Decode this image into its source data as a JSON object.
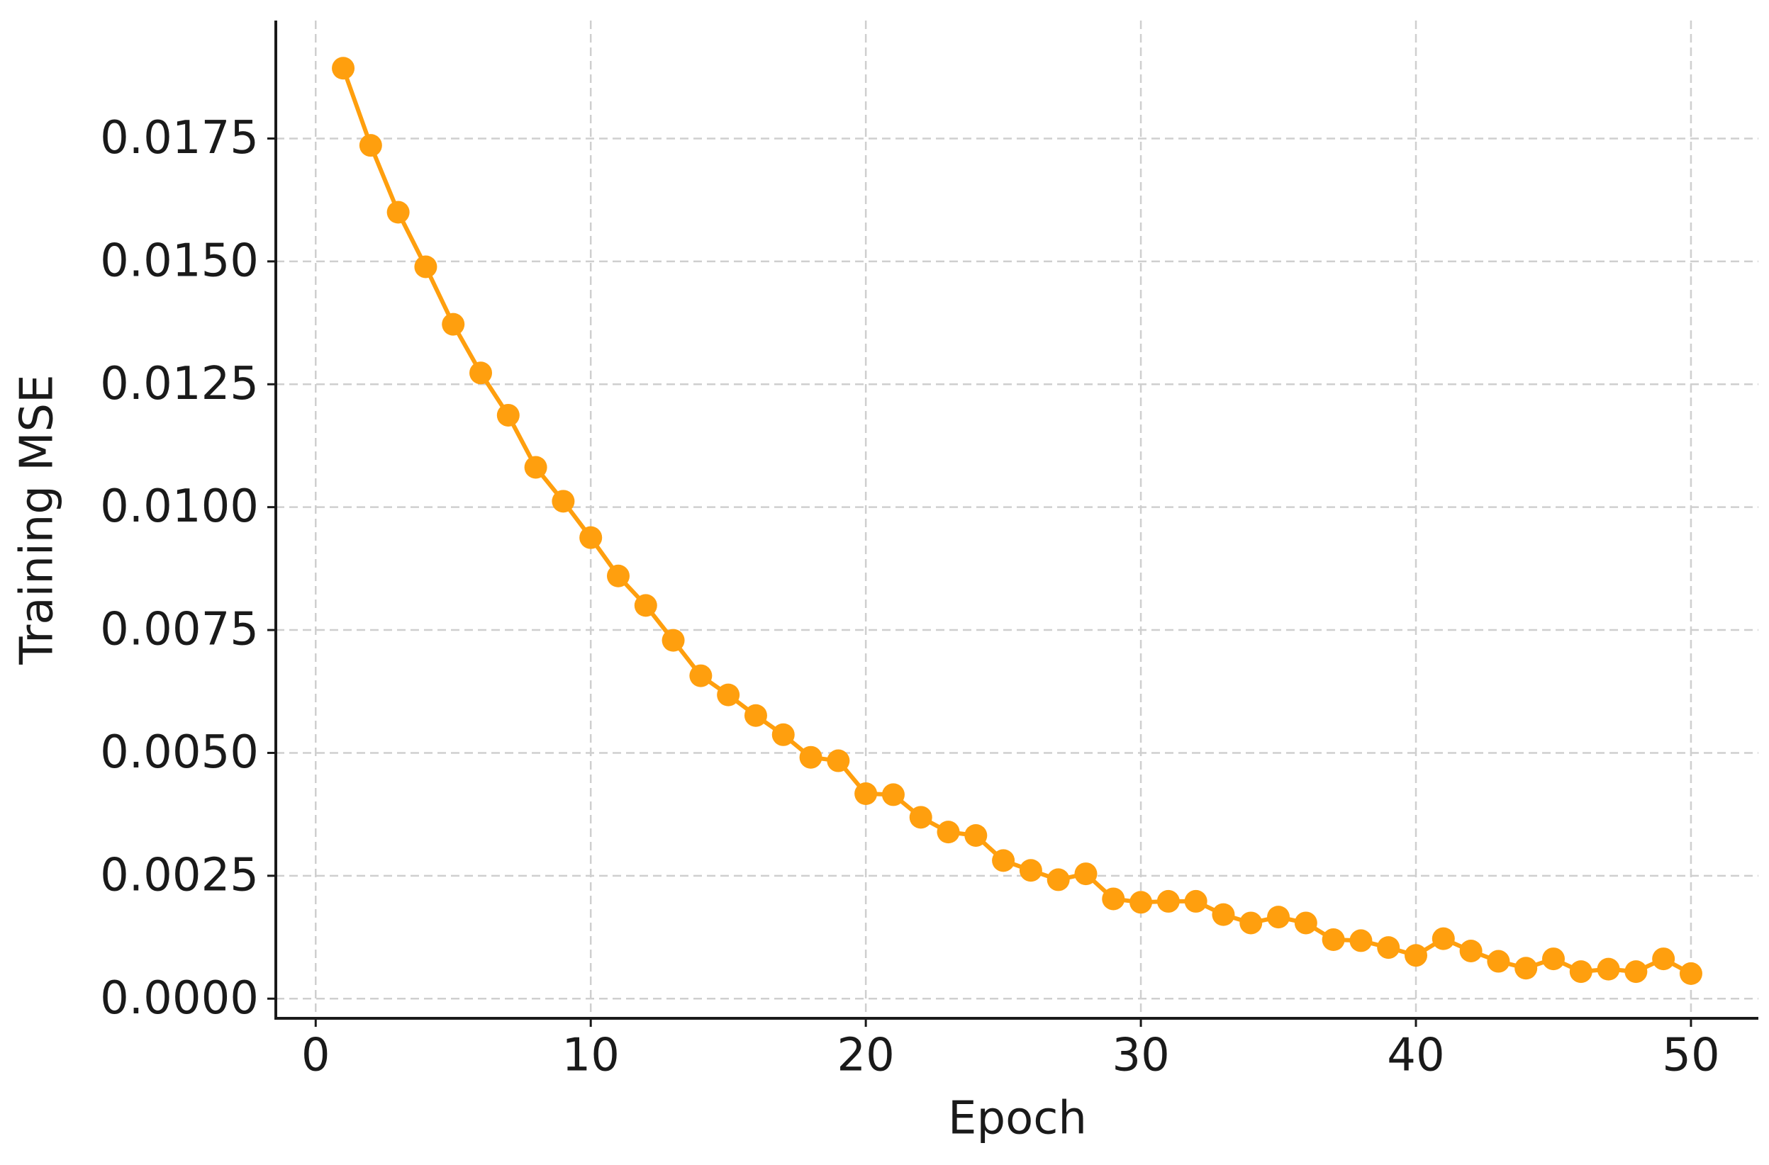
{
  "chart_data": {
    "type": "line",
    "xlabel": "Epoch",
    "ylabel": "Training MSE",
    "x": [
      1,
      2,
      3,
      4,
      5,
      6,
      7,
      8,
      9,
      10,
      11,
      12,
      13,
      14,
      15,
      16,
      17,
      18,
      19,
      20,
      21,
      22,
      23,
      24,
      25,
      26,
      27,
      28,
      29,
      30,
      31,
      32,
      33,
      34,
      35,
      36,
      37,
      38,
      39,
      40,
      41,
      42,
      43,
      44,
      45,
      46,
      47,
      48,
      49,
      50
    ],
    "values": [
      0.01893,
      0.01736,
      0.016,
      0.01489,
      0.01372,
      0.01273,
      0.01187,
      0.01081,
      0.01012,
      0.00938,
      0.0086,
      0.008,
      0.00729,
      0.00657,
      0.00618,
      0.00576,
      0.00537,
      0.00491,
      0.00484,
      0.00417,
      0.00415,
      0.00369,
      0.00339,
      0.00332,
      0.00281,
      0.00261,
      0.00242,
      0.00254,
      0.00203,
      0.00196,
      0.00198,
      0.00198,
      0.00171,
      0.00154,
      0.00166,
      0.00154,
      0.0012,
      0.00118,
      0.00104,
      0.00088,
      0.00122,
      0.00097,
      0.00076,
      0.00062,
      0.00081,
      0.00055,
      0.0006,
      0.00055,
      0.00081,
      0.00051
    ],
    "color": "#ff9f0e",
    "xlim": [
      -1.45,
      52.45
    ],
    "xticks": [
      0,
      10,
      20,
      30,
      40,
      50
    ],
    "ylim": [
      -0.0004,
      0.0199
    ],
    "yticks": [
      {
        "value": 0,
        "label": "0.0000"
      },
      {
        "value": 0.0025,
        "label": "0.0025"
      },
      {
        "value": 0.005,
        "label": "0.0050"
      },
      {
        "value": 0.0075,
        "label": "0.0075"
      },
      {
        "value": 0.01,
        "label": "0.0100"
      },
      {
        "value": 0.0125,
        "label": "0.0125"
      },
      {
        "value": 0.015,
        "label": "0.0150"
      },
      {
        "value": 0.0175,
        "label": "0.0175"
      }
    ],
    "grid": true
  }
}
